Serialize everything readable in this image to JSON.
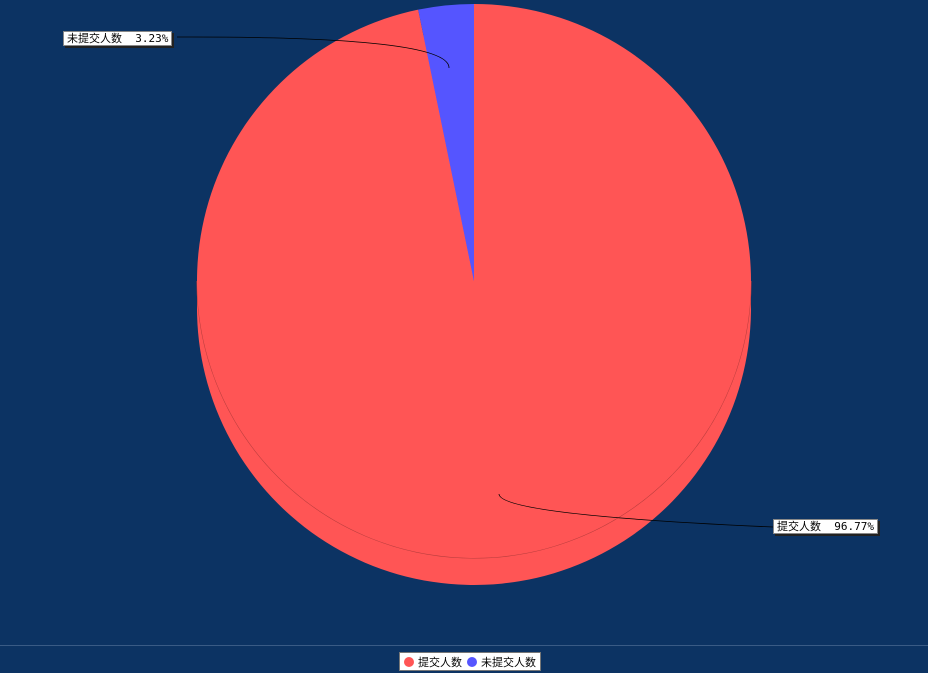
{
  "chart_data": {
    "type": "pie",
    "style": "3d",
    "categories": [
      "提交人数",
      "未提交人数"
    ],
    "values": [
      96.77,
      3.23
    ],
    "labels": [
      "提交人数  96.77%",
      "未提交人数  3.23%"
    ],
    "colors": [
      "#ff5555",
      "#5555ff"
    ],
    "legend_position": "bottom-center"
  },
  "legend": {
    "items": [
      {
        "label": "提交人数",
        "color": "#ff5555"
      },
      {
        "label": "未提交人数",
        "color": "#5555ff"
      }
    ]
  }
}
